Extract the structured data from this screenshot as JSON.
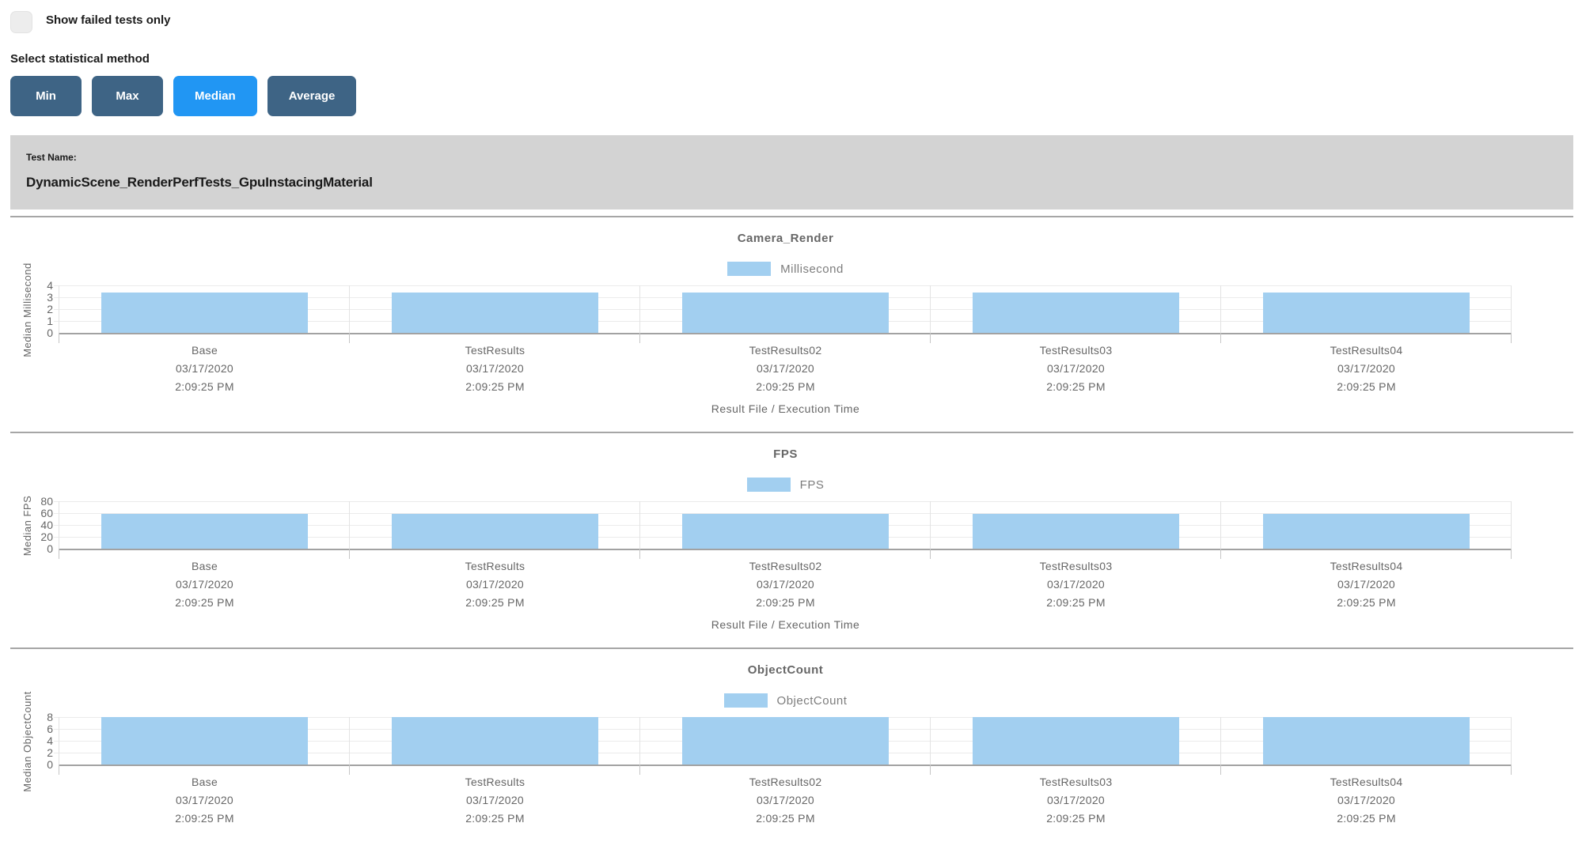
{
  "controls": {
    "show_failed_label": "Show failed tests only",
    "stat_method_label": "Select statistical method",
    "buttons": [
      {
        "label": "Min",
        "selected": false
      },
      {
        "label": "Max",
        "selected": false
      },
      {
        "label": "Median",
        "selected": true
      },
      {
        "label": "Average",
        "selected": false
      }
    ]
  },
  "test_panel": {
    "label": "Test Name:",
    "name": "DynamicScene_RenderPerfTests_GpuInstacingMaterial"
  },
  "colors": {
    "button": "#3e6485",
    "button_selected": "#2196f3",
    "bar": "#a2cff0",
    "panel_bg": "#d3d3d3"
  },
  "chart_data": [
    {
      "type": "bar",
      "title": "Camera_Render",
      "legend": "Millisecond",
      "ylabel": "Median Millisecond",
      "xlabel": "Result File / Execution Time",
      "ylim": [
        0,
        4
      ],
      "yticks": [
        4,
        3,
        2,
        1,
        0
      ],
      "grid": true,
      "legend_position": "top-center",
      "categories": [
        {
          "name": "Base",
          "date": "03/17/2020",
          "time": "2:09:25 PM"
        },
        {
          "name": "TestResults",
          "date": "03/17/2020",
          "time": "2:09:25 PM"
        },
        {
          "name": "TestResults02",
          "date": "03/17/2020",
          "time": "2:09:25 PM"
        },
        {
          "name": "TestResults03",
          "date": "03/17/2020",
          "time": "2:09:25 PM"
        },
        {
          "name": "TestResults04",
          "date": "03/17/2020",
          "time": "2:09:25 PM"
        }
      ],
      "values": [
        3.4,
        3.4,
        3.4,
        3.4,
        3.4
      ]
    },
    {
      "type": "bar",
      "title": "FPS",
      "legend": "FPS",
      "ylabel": "Median FPS",
      "xlabel": "Result File / Execution Time",
      "ylim": [
        0,
        80
      ],
      "yticks": [
        80,
        60,
        40,
        20,
        0
      ],
      "grid": true,
      "legend_position": "top-center",
      "categories": [
        {
          "name": "Base",
          "date": "03/17/2020",
          "time": "2:09:25 PM"
        },
        {
          "name": "TestResults",
          "date": "03/17/2020",
          "time": "2:09:25 PM"
        },
        {
          "name": "TestResults02",
          "date": "03/17/2020",
          "time": "2:09:25 PM"
        },
        {
          "name": "TestResults03",
          "date": "03/17/2020",
          "time": "2:09:25 PM"
        },
        {
          "name": "TestResults04",
          "date": "03/17/2020",
          "time": "2:09:25 PM"
        }
      ],
      "values": [
        59,
        59,
        59,
        59,
        59
      ]
    },
    {
      "type": "bar",
      "title": "ObjectCount",
      "legend": "ObjectCount",
      "ylabel": "Median ObjectCount",
      "xlabel": "",
      "ylim": [
        0,
        8
      ],
      "yticks": [
        8,
        6,
        4,
        2,
        0
      ],
      "grid": true,
      "legend_position": "top-center",
      "categories": [
        {
          "name": "Base",
          "date": "03/17/2020",
          "time": "2:09:25 PM"
        },
        {
          "name": "TestResults",
          "date": "03/17/2020",
          "time": "2:09:25 PM"
        },
        {
          "name": "TestResults02",
          "date": "03/17/2020",
          "time": "2:09:25 PM"
        },
        {
          "name": "TestResults03",
          "date": "03/17/2020",
          "time": "2:09:25 PM"
        },
        {
          "name": "TestResults04",
          "date": "03/17/2020",
          "time": "2:09:25 PM"
        }
      ],
      "values": [
        8,
        8,
        8,
        8,
        8
      ]
    }
  ]
}
